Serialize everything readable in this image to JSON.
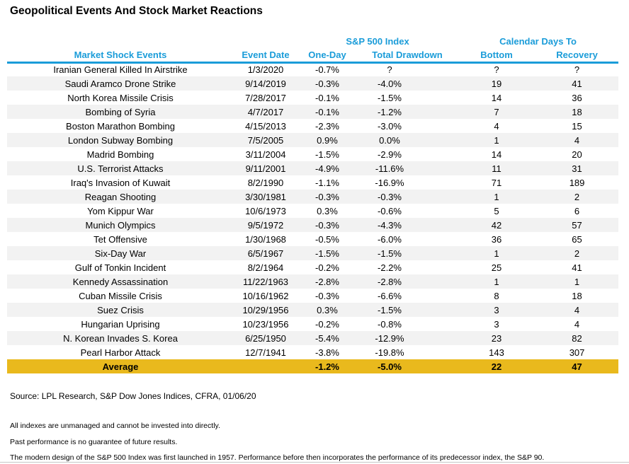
{
  "title": "Geopolitical Events And Stock Market Reactions",
  "colors": {
    "header_blue": "#1A9CD9",
    "average_gold": "#E9B91D",
    "stripe_gray": "#F2F2F2"
  },
  "chart_data": {
    "type": "table",
    "group_headers": {
      "sp500": "S&P 500 Index",
      "calendar_days": "Calendar Days To"
    },
    "columns": [
      "Market Shock Events",
      "Event Date",
      "One-Day",
      "Total Drawdown",
      "Bottom",
      "Recovery"
    ],
    "rows": [
      [
        "Iranian General Killed In Airstrike",
        "1/3/2020",
        "-0.7%",
        "?",
        "?",
        "?"
      ],
      [
        "Saudi Aramco Drone Strike",
        "9/14/2019",
        "-0.3%",
        "-4.0%",
        "19",
        "41"
      ],
      [
        "North Korea Missile Crisis",
        "7/28/2017",
        "-0.1%",
        "-1.5%",
        "14",
        "36"
      ],
      [
        "Bombing of Syria",
        "4/7/2017",
        "-0.1%",
        "-1.2%",
        "7",
        "18"
      ],
      [
        "Boston Marathon Bombing",
        "4/15/2013",
        "-2.3%",
        "-3.0%",
        "4",
        "15"
      ],
      [
        "London Subway Bombing",
        "7/5/2005",
        "0.9%",
        "0.0%",
        "1",
        "4"
      ],
      [
        "Madrid Bombing",
        "3/11/2004",
        "-1.5%",
        "-2.9%",
        "14",
        "20"
      ],
      [
        "U.S. Terrorist Attacks",
        "9/11/2001",
        "-4.9%",
        "-11.6%",
        "11",
        "31"
      ],
      [
        "Iraq's Invasion of Kuwait",
        "8/2/1990",
        "-1.1%",
        "-16.9%",
        "71",
        "189"
      ],
      [
        "Reagan Shooting",
        "3/30/1981",
        "-0.3%",
        "-0.3%",
        "1",
        "2"
      ],
      [
        "Yom Kippur War",
        "10/6/1973",
        "0.3%",
        "-0.6%",
        "5",
        "6"
      ],
      [
        "Munich Olympics",
        "9/5/1972",
        "-0.3%",
        "-4.3%",
        "42",
        "57"
      ],
      [
        "Tet Offensive",
        "1/30/1968",
        "-0.5%",
        "-6.0%",
        "36",
        "65"
      ],
      [
        "Six-Day War",
        "6/5/1967",
        "-1.5%",
        "-1.5%",
        "1",
        "2"
      ],
      [
        "Gulf of Tonkin Incident",
        "8/2/1964",
        "-0.2%",
        "-2.2%",
        "25",
        "41"
      ],
      [
        "Kennedy Assassination",
        "11/22/1963",
        "-2.8%",
        "-2.8%",
        "1",
        "1"
      ],
      [
        "Cuban Missile Crisis",
        "10/16/1962",
        "-0.3%",
        "-6.6%",
        "8",
        "18"
      ],
      [
        "Suez Crisis",
        "10/29/1956",
        "0.3%",
        "-1.5%",
        "3",
        "4"
      ],
      [
        "Hungarian Uprising",
        "10/23/1956",
        "-0.2%",
        "-0.8%",
        "3",
        "4"
      ],
      [
        "N. Korean Invades S. Korea",
        "6/25/1950",
        "-5.4%",
        "-12.9%",
        "23",
        "82"
      ],
      [
        "Pearl Harbor Attack",
        "12/7/1941",
        "-3.8%",
        "-19.8%",
        "143",
        "307"
      ]
    ],
    "average_row": {
      "label": "Average",
      "event_date": "",
      "one_day": "-1.2%",
      "total_drawdown": "-5.0%",
      "bottom": "22",
      "recovery": "47"
    }
  },
  "footer": {
    "source": "Source: LPL Research, S&P Dow Jones Indices, CFRA, 01/06/20",
    "disclaimers": [
      "All indexes are unmanaged and cannot be invested into directly.",
      "Past performance is no guarantee of future results.",
      "The modern design of the S&P 500 Index was first launched in 1957. Performance before then incorporates the performance of its predecessor index, the S&P 90."
    ]
  }
}
